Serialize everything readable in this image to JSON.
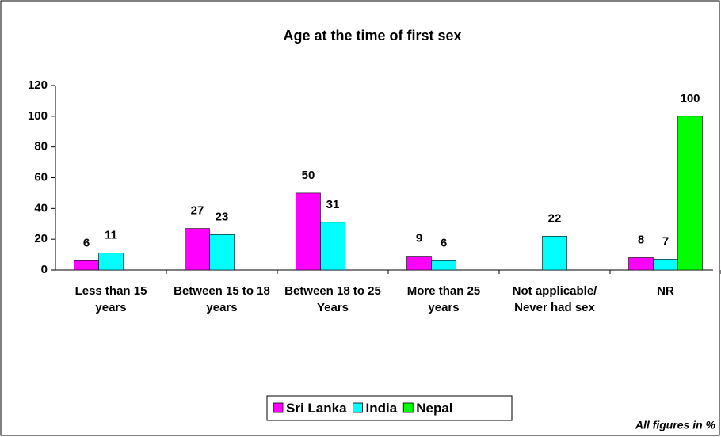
{
  "chart_data": {
    "type": "bar",
    "title": "Age at the time of first sex",
    "categories": [
      "Less than 15 years",
      "Between 15 to 18 years",
      "Between 18 to 25 Years",
      "More than 25 years",
      "Not applicable/ Never had sex",
      "NR"
    ],
    "series": [
      {
        "name": "Sri Lanka",
        "color": "#ff00ff",
        "values": [
          6,
          27,
          50,
          9,
          null,
          8
        ]
      },
      {
        "name": "India",
        "color": "#00ffff",
        "values": [
          11,
          23,
          31,
          6,
          22,
          7
        ]
      },
      {
        "name": "Nepal",
        "color": "#00ff00",
        "values": [
          null,
          null,
          null,
          null,
          null,
          100
        ]
      }
    ],
    "ylim": [
      0,
      120
    ],
    "yticks": [
      0,
      20,
      40,
      60,
      80,
      100,
      120
    ],
    "grid": false,
    "legend": "bottom",
    "note": "All figures in %"
  }
}
